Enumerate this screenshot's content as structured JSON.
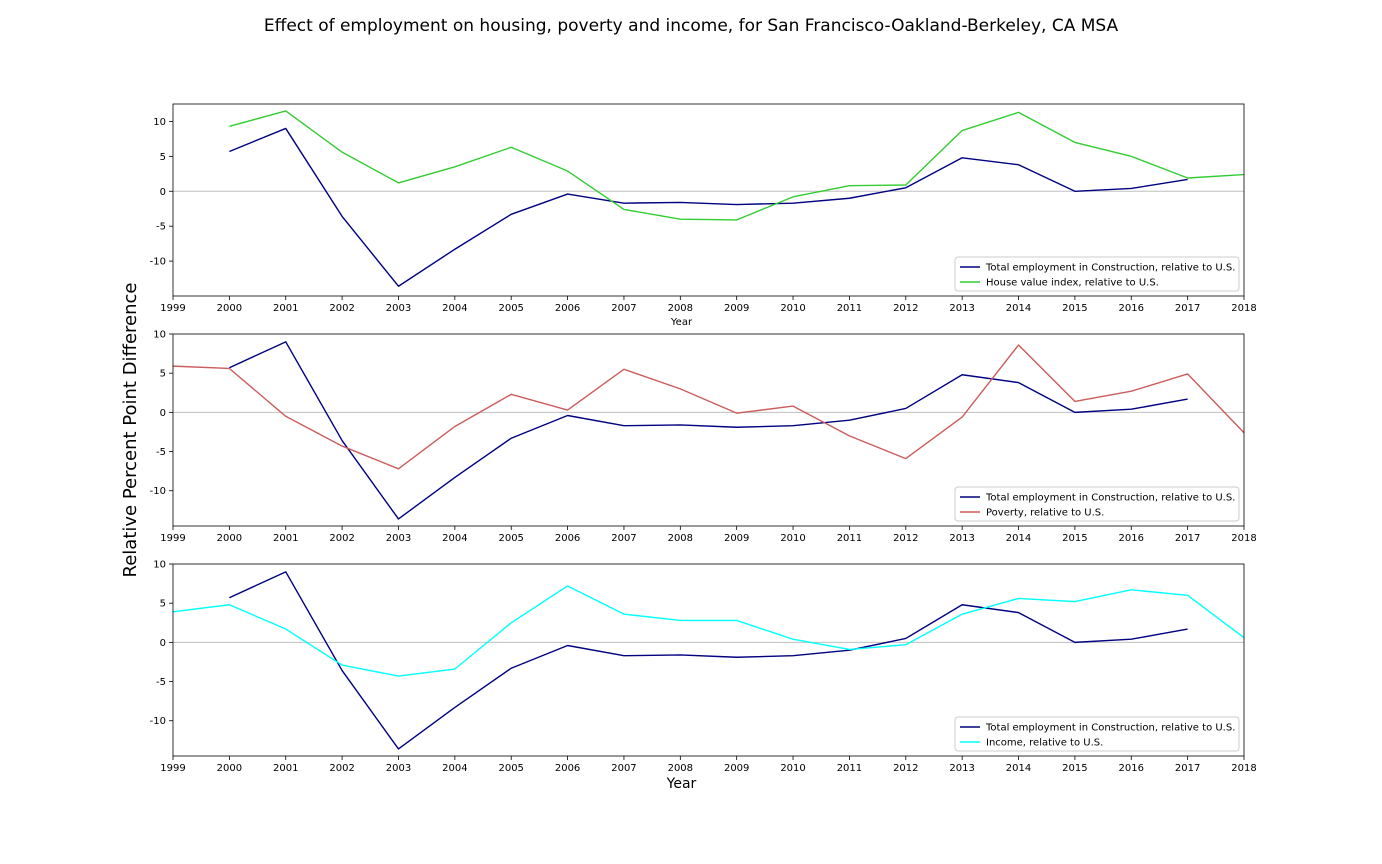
{
  "figure": {
    "title": "Effect of employment on housing, poverty and income, for San Francisco-Oakland-Berkeley, CA MSA",
    "ylabel": "Relative Percent Point Difference",
    "baseline_color": "#c0c0c0"
  },
  "chart_data": [
    {
      "type": "line",
      "xlabel": "Year",
      "x": [
        1999,
        2000,
        2001,
        2002,
        2003,
        2004,
        2005,
        2006,
        2007,
        2008,
        2009,
        2010,
        2011,
        2012,
        2013,
        2014,
        2015,
        2016,
        2017,
        2018
      ],
      "xlim": [
        1999,
        2018
      ],
      "ylim": [
        -15,
        12.5
      ],
      "yticks": [
        10,
        5,
        0,
        -5,
        -10
      ],
      "xticks": [
        1999,
        2000,
        2001,
        2002,
        2003,
        2004,
        2005,
        2006,
        2007,
        2008,
        2009,
        2010,
        2011,
        2012,
        2013,
        2014,
        2015,
        2016,
        2017,
        2018
      ],
      "legend_position": "lower-right",
      "series": [
        {
          "name": "Total employment in Construction, relative to U.S.",
          "color": "#000080",
          "values": [
            null,
            5.7,
            9.0,
            -3.6,
            -13.6,
            -8.3,
            -3.3,
            -0.4,
            -1.7,
            -1.6,
            -1.9,
            -1.7,
            -1.0,
            0.5,
            4.8,
            3.8,
            0.0,
            0.4,
            1.7,
            null
          ]
        },
        {
          "name": "House value index, relative to U.S.",
          "color": "#32cd32",
          "values": [
            null,
            9.3,
            11.5,
            5.6,
            1.2,
            3.5,
            6.3,
            2.9,
            -2.6,
            -4.0,
            -4.1,
            -0.8,
            0.8,
            0.9,
            8.7,
            11.3,
            7.0,
            5.0,
            1.9,
            2.4
          ]
        }
      ]
    },
    {
      "type": "line",
      "xlabel": "",
      "x": [
        1999,
        2000,
        2001,
        2002,
        2003,
        2004,
        2005,
        2006,
        2007,
        2008,
        2009,
        2010,
        2011,
        2012,
        2013,
        2014,
        2015,
        2016,
        2017,
        2018
      ],
      "xlim": [
        1999,
        2018
      ],
      "ylim": [
        -14.5,
        10
      ],
      "yticks": [
        10,
        5,
        0,
        -5,
        -10
      ],
      "xticks": [
        1999,
        2000,
        2001,
        2002,
        2003,
        2004,
        2005,
        2006,
        2007,
        2008,
        2009,
        2010,
        2011,
        2012,
        2013,
        2014,
        2015,
        2016,
        2017,
        2018
      ],
      "legend_position": "lower-right",
      "series": [
        {
          "name": "Total employment in Construction, relative to U.S.",
          "color": "#000080",
          "values": [
            null,
            5.7,
            9.0,
            -3.6,
            -13.6,
            -8.3,
            -3.3,
            -0.4,
            -1.7,
            -1.6,
            -1.9,
            -1.7,
            -1.0,
            0.5,
            4.8,
            3.8,
            0.0,
            0.4,
            1.7,
            null
          ]
        },
        {
          "name": "Poverty, relative to U.S.",
          "color": "#cd5c5c",
          "values": [
            5.9,
            5.6,
            -0.5,
            -4.3,
            -7.2,
            -1.8,
            2.3,
            0.3,
            5.5,
            3.0,
            -0.1,
            0.8,
            -3.0,
            -5.9,
            -0.6,
            8.6,
            1.4,
            2.7,
            4.9,
            -2.6
          ]
        }
      ]
    },
    {
      "type": "line",
      "xlabel": "Year",
      "x": [
        1999,
        2000,
        2001,
        2002,
        2003,
        2004,
        2005,
        2006,
        2007,
        2008,
        2009,
        2010,
        2011,
        2012,
        2013,
        2014,
        2015,
        2016,
        2017,
        2018
      ],
      "xlim": [
        1999,
        2018
      ],
      "ylim": [
        -14.5,
        10
      ],
      "yticks": [
        10,
        5,
        0,
        -5,
        -10
      ],
      "xticks": [
        1999,
        2000,
        2001,
        2002,
        2003,
        2004,
        2005,
        2006,
        2007,
        2008,
        2009,
        2010,
        2011,
        2012,
        2013,
        2014,
        2015,
        2016,
        2017,
        2018
      ],
      "legend_position": "lower-right",
      "series": [
        {
          "name": "Total employment in Construction, relative to U.S.",
          "color": "#000080",
          "values": [
            null,
            5.7,
            9.0,
            -3.6,
            -13.6,
            -8.3,
            -3.3,
            -0.4,
            -1.7,
            -1.6,
            -1.9,
            -1.7,
            -1.0,
            0.5,
            4.8,
            3.8,
            0.0,
            0.4,
            1.7,
            null
          ]
        },
        {
          "name": "Income, relative to U.S.",
          "color": "#00ffff",
          "values": [
            3.9,
            4.8,
            1.7,
            -2.9,
            -4.3,
            -3.4,
            2.5,
            7.2,
            3.6,
            2.8,
            2.8,
            0.4,
            -0.9,
            -0.3,
            3.6,
            5.6,
            5.2,
            6.7,
            6.0,
            0.6
          ]
        }
      ]
    }
  ]
}
